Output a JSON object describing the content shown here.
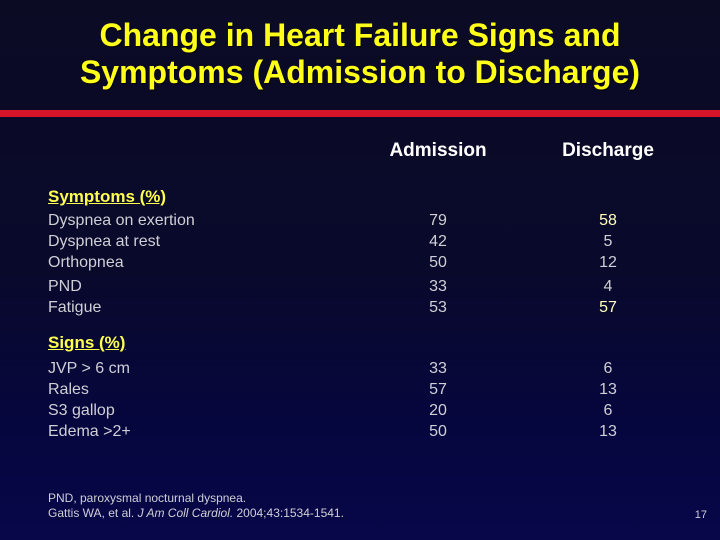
{
  "title": {
    "line1": "Change in Heart Failure Signs and",
    "line2": "Symptoms (Admission to Discharge)"
  },
  "table": {
    "columns": [
      "Admission",
      "Discharge"
    ],
    "sections": [
      {
        "heading": "Symptoms (%)",
        "rows": [
          {
            "label": "Dyspnea on exertion",
            "admission": "79",
            "discharge": "58"
          },
          {
            "label": "Dyspnea at rest",
            "admission": "42",
            "discharge": "5"
          },
          {
            "label": "Orthopnea",
            "admission": "50",
            "discharge": "12"
          },
          {
            "label": "PND",
            "admission": "33",
            "discharge": "4"
          },
          {
            "label": "Fatigue",
            "admission": "53",
            "discharge": "57"
          }
        ]
      },
      {
        "heading": "Signs (%)",
        "rows": [
          {
            "label": "JVP > 6 cm",
            "admission": "33",
            "discharge": "6"
          },
          {
            "label": "Rales",
            "admission": "57",
            "discharge": "13"
          },
          {
            "label": "S3 gallop",
            "admission": "20",
            "discharge": "6"
          },
          {
            "label": "Edema >2+",
            "admission": "50",
            "discharge": "13"
          }
        ]
      }
    ]
  },
  "footnote": {
    "line1": "PND, paroxysmal nocturnal dyspnea.",
    "citation_prefix": "Gattis WA, et al. ",
    "citation_journal": "J Am Coll Cardiol.",
    "citation_suffix": " 2004;43:1534-1541."
  },
  "page_number": "17",
  "colors": {
    "background_top": "#0b0b24",
    "background_bottom": "#07074a",
    "title_yellow": "#ffff1a",
    "section_heading_yellow": "#ffff4d",
    "column_header_white": "#ffffff",
    "body_text": "#cfcfd6",
    "highlight_value_yellow": "#ffffbf",
    "divider_red": "#d51329"
  }
}
